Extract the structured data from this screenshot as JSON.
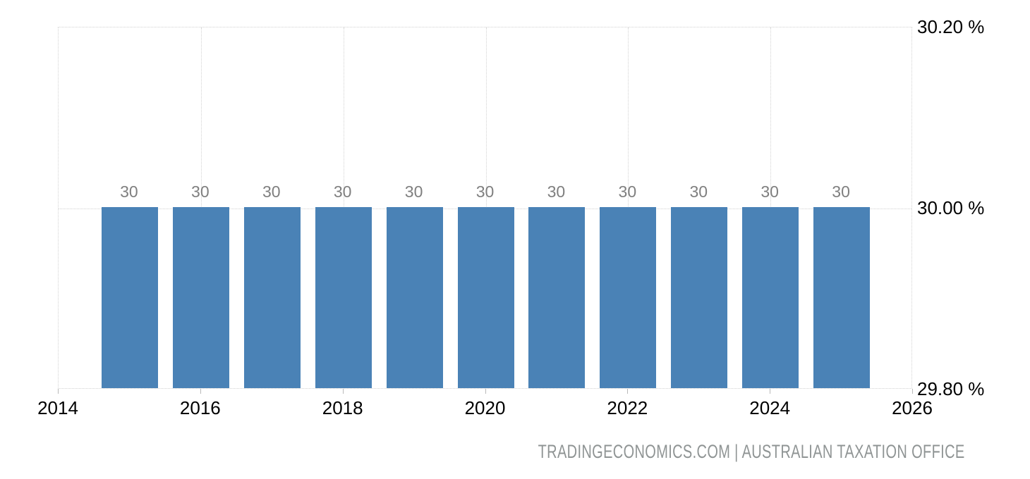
{
  "chart_data": {
    "type": "bar",
    "title": "",
    "xlabel": "",
    "ylabel": "",
    "x": [
      2015,
      2016,
      2017,
      2018,
      2019,
      2020,
      2021,
      2022,
      2023,
      2024,
      2025
    ],
    "values": [
      30,
      30,
      30,
      30,
      30,
      30,
      30,
      30,
      30,
      30,
      30
    ],
    "bar_labels": [
      "30",
      "30",
      "30",
      "30",
      "30",
      "30",
      "30",
      "30",
      "30",
      "30",
      "30"
    ],
    "xlim": [
      2014,
      2026
    ],
    "ylim": [
      29.8,
      30.2
    ],
    "x_ticks": [
      {
        "value": 2014,
        "label": "2014"
      },
      {
        "value": 2016,
        "label": "2016"
      },
      {
        "value": 2018,
        "label": "2018"
      },
      {
        "value": 2020,
        "label": "2020"
      },
      {
        "value": 2022,
        "label": "2022"
      },
      {
        "value": 2024,
        "label": "2024"
      },
      {
        "value": 2026,
        "label": "2026"
      }
    ],
    "y_ticks": [
      {
        "value": 30.2,
        "label": "30.20 %"
      },
      {
        "value": 30.0,
        "label": "30.00 %"
      },
      {
        "value": 29.8,
        "label": "29.80 %"
      }
    ],
    "grid": "dotted",
    "legend": false
  },
  "footer": {
    "attribution": "TRADINGECONOMICS.COM | AUSTRALIAN TAXATION OFFICE"
  },
  "colors": {
    "bar": "#4a82b6",
    "value_label": "#7f7f7f",
    "grid": "#d2d2d2",
    "axis_text": "#000000",
    "tick_mark": "#b9b9b9",
    "footer_text": "#8f9494",
    "background": "#ffffff"
  }
}
